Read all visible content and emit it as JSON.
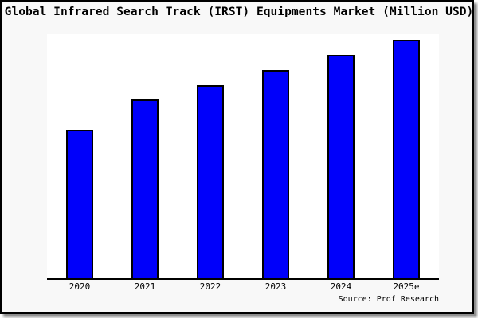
{
  "chart_data": {
    "type": "bar",
    "title": "Global Infrared Search Track (IRST) Equipments Market (Million USD)",
    "categories": [
      "2020",
      "2021",
      "2022",
      "2023",
      "2024",
      "2025e"
    ],
    "values": [
      100,
      120,
      130,
      140,
      150,
      160
    ],
    "values_note": "Y-axis has no tick labels in the source image; values are an estimated index derived from relative bar heights (ratios 100:120:130:140:150:160)",
    "xlabel": "",
    "ylabel": "",
    "ylim": [
      0,
      164
    ],
    "grid": false,
    "legend": false,
    "colors": {
      "bar_fill": "#0000fa",
      "bar_border": "#000000",
      "plot_background": "#ffffff",
      "figure_background": "#f8f8f8",
      "frame_border": "#000000",
      "text": "#000000"
    }
  },
  "source": {
    "label": "Source: Prof Research"
  }
}
